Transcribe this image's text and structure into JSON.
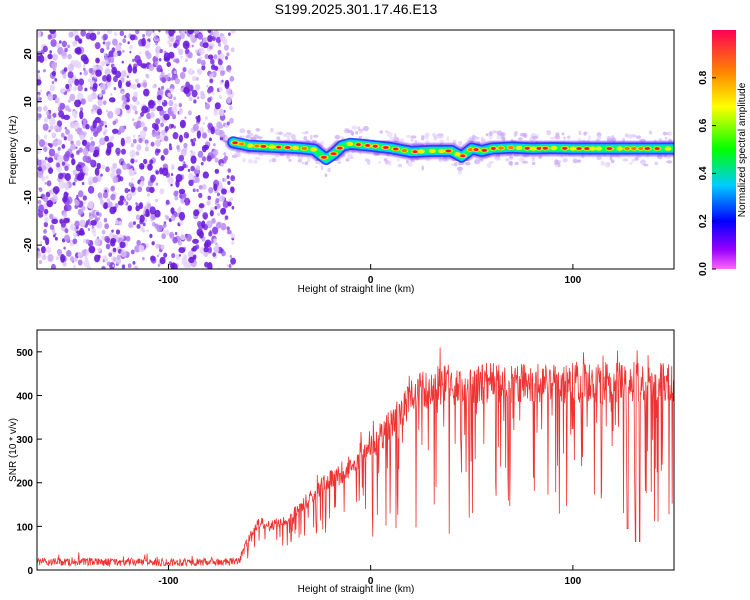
{
  "title": "S199.2025.301.17.46.E13",
  "chart_data": [
    {
      "type": "heatmap",
      "name": "spectrogram",
      "xlabel": "Height of straight line (km)",
      "ylabel": "Frequency (Hz)",
      "xlim": [
        -165,
        150
      ],
      "ylim": [
        -25,
        25
      ],
      "xticks": [
        -100,
        0,
        100
      ],
      "yticks": [
        -20,
        -10,
        0,
        10,
        20
      ],
      "noise_region_x": [
        -165,
        -68
      ],
      "trace_region_x": [
        -68,
        150
      ],
      "trace_ridge": {
        "x": [
          -68,
          -60,
          -45,
          -35,
          -28,
          -22,
          -18,
          -14,
          -10,
          -5,
          0,
          10,
          20,
          30,
          40,
          45,
          50,
          55,
          60,
          70,
          80,
          90,
          100,
          110,
          120,
          130,
          140,
          150
        ],
        "y": [
          1.5,
          0.8,
          0.5,
          0.3,
          0,
          -2.0,
          -0.8,
          0.8,
          1.2,
          1.0,
          0.8,
          0.3,
          -0.5,
          -0.3,
          -0.3,
          -1.5,
          0.2,
          -0.3,
          0.2,
          0.4,
          0.2,
          0.3,
          0.2,
          0.2,
          0.2,
          0.2,
          0.2,
          0.2
        ]
      },
      "colorbar": {
        "label": "Normalized spectral amplitude",
        "range": [
          0.0,
          1.0
        ],
        "ticks": [
          0.0,
          0.2,
          0.4,
          0.6,
          0.8
        ],
        "tick_labels": [
          "0.0",
          "0.2",
          "0.4",
          "0.6",
          "0.8"
        ]
      }
    },
    {
      "type": "line",
      "name": "snr",
      "xlabel": "Height of straight line (km)",
      "ylabel": "SNR (10 * v/v)",
      "xlim": [
        -165,
        150
      ],
      "ylim": [
        0,
        550
      ],
      "xticks": [
        -100,
        0,
        100
      ],
      "yticks": [
        0,
        100,
        200,
        300,
        400,
        500
      ],
      "color": "#ee3333",
      "envelope": {
        "x": [
          -165,
          -100,
          -70,
          -65,
          -60,
          -55,
          -50,
          -40,
          -30,
          -25,
          -20,
          -15,
          -10,
          -5,
          0,
          5,
          10,
          15,
          20,
          25,
          30,
          40,
          50,
          60,
          70,
          80,
          90,
          100,
          110,
          120,
          130,
          140,
          150
        ],
        "y": [
          18,
          18,
          18,
          22,
          75,
          110,
          100,
          120,
          165,
          190,
          210,
          210,
          240,
          265,
          280,
          305,
          335,
          365,
          390,
          410,
          420,
          425,
          428,
          430,
          430,
          428,
          428,
          430,
          428,
          428,
          430,
          428,
          430
        ]
      }
    }
  ]
}
